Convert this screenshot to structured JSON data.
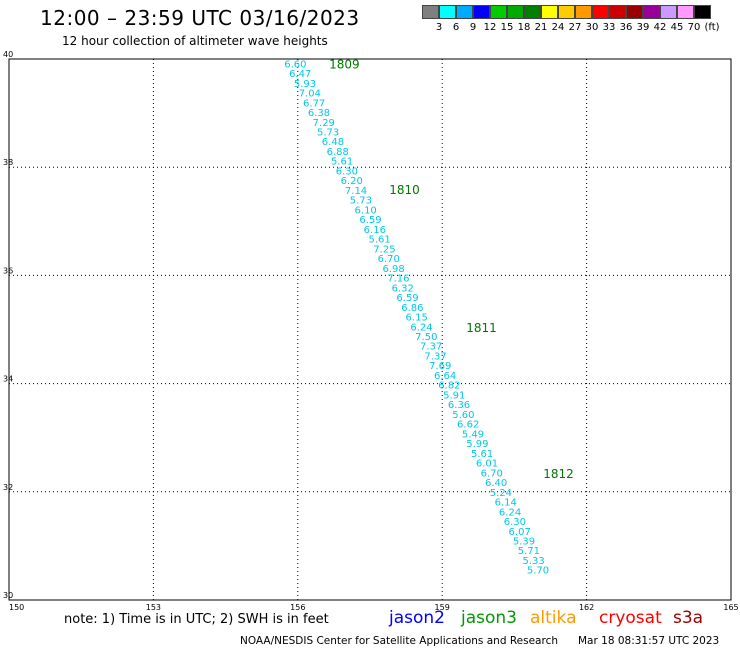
{
  "title": "12:00 – 23:59 UTC 03/16/2023",
  "subtitle": "12 hour collection of altimeter wave heights",
  "legend": {
    "colors": [
      "#7f7f7f",
      "#00ffff",
      "#00aaff",
      "#0000ff",
      "#00cc00",
      "#00aa00",
      "#008000",
      "#ffff00",
      "#ffcc00",
      "#ff9900",
      "#ff0000",
      "#cc0000",
      "#990000",
      "#990099",
      "#cc99ff",
      "#ff99ff",
      "#000000"
    ],
    "labels": [
      "3",
      "6",
      "9",
      "12",
      "15",
      "18",
      "21",
      "24",
      "27",
      "30",
      "33",
      "36",
      "39",
      "42",
      "45",
      "70"
    ],
    "unit": "(ft)"
  },
  "chart_data": {
    "type": "scatter",
    "xlim": [
      150,
      165
    ],
    "ylim": [
      30,
      40
    ],
    "x_ticks": [
      "150",
      "153",
      "156",
      "159",
      "162",
      "165"
    ],
    "y_ticks": [
      "40",
      "38",
      "36",
      "34",
      "32",
      "30"
    ],
    "grid": true,
    "series": [
      {
        "color": "#00c8e6",
        "points": [
          {
            "x": 155.95,
            "y": 39.92,
            "v": "6.60"
          },
          {
            "x": 156.05,
            "y": 39.74,
            "v": "6.47"
          },
          {
            "x": 156.15,
            "y": 39.56,
            "v": "5.93"
          },
          {
            "x": 156.25,
            "y": 39.38,
            "v": "7.04"
          },
          {
            "x": 156.34,
            "y": 39.2,
            "v": "6.77"
          },
          {
            "x": 156.44,
            "y": 39.02,
            "v": "6.38"
          },
          {
            "x": 156.54,
            "y": 38.84,
            "v": "7.29"
          },
          {
            "x": 156.63,
            "y": 38.66,
            "v": "5.73"
          },
          {
            "x": 156.73,
            "y": 38.48,
            "v": "6.48"
          },
          {
            "x": 156.83,
            "y": 38.3,
            "v": "6.88"
          },
          {
            "x": 156.92,
            "y": 38.12,
            "v": "5.61"
          },
          {
            "x": 157.02,
            "y": 37.94,
            "v": "6.30"
          },
          {
            "x": 157.12,
            "y": 37.76,
            "v": "6.20"
          },
          {
            "x": 157.21,
            "y": 37.58,
            "v": "7.14"
          },
          {
            "x": 157.31,
            "y": 37.4,
            "v": "5.73"
          },
          {
            "x": 157.41,
            "y": 37.22,
            "v": "6.10"
          },
          {
            "x": 157.51,
            "y": 37.04,
            "v": "6.59"
          },
          {
            "x": 157.6,
            "y": 36.86,
            "v": "6.16"
          },
          {
            "x": 157.7,
            "y": 36.68,
            "v": "5.61"
          },
          {
            "x": 157.8,
            "y": 36.5,
            "v": "7.25"
          },
          {
            "x": 157.89,
            "y": 36.32,
            "v": "6.70"
          },
          {
            "x": 157.99,
            "y": 36.14,
            "v": "6.98"
          },
          {
            "x": 158.09,
            "y": 35.96,
            "v": "7.16"
          },
          {
            "x": 158.18,
            "y": 35.78,
            "v": "6.32"
          },
          {
            "x": 158.28,
            "y": 35.6,
            "v": "6.59"
          },
          {
            "x": 158.38,
            "y": 35.42,
            "v": "6.86"
          },
          {
            "x": 158.47,
            "y": 35.24,
            "v": "6.15"
          },
          {
            "x": 158.57,
            "y": 35.06,
            "v": "6.24"
          },
          {
            "x": 158.67,
            "y": 34.88,
            "v": "7.50"
          },
          {
            "x": 158.77,
            "y": 34.7,
            "v": "7.37"
          },
          {
            "x": 158.86,
            "y": 34.52,
            "v": "7.37"
          },
          {
            "x": 158.96,
            "y": 34.34,
            "v": "7.69"
          },
          {
            "x": 159.06,
            "y": 34.16,
            "v": "6.64"
          },
          {
            "x": 159.15,
            "y": 33.98,
            "v": "6.82"
          },
          {
            "x": 159.25,
            "y": 33.8,
            "v": "5.91"
          },
          {
            "x": 159.35,
            "y": 33.62,
            "v": "6.36"
          },
          {
            "x": 159.44,
            "y": 33.44,
            "v": "5.60"
          },
          {
            "x": 159.54,
            "y": 33.26,
            "v": "6.62"
          },
          {
            "x": 159.64,
            "y": 33.08,
            "v": "5.49"
          },
          {
            "x": 159.73,
            "y": 32.9,
            "v": "5.99"
          },
          {
            "x": 159.83,
            "y": 32.72,
            "v": "5.61"
          },
          {
            "x": 159.93,
            "y": 32.54,
            "v": "6.01"
          },
          {
            "x": 160.03,
            "y": 32.36,
            "v": "6.70"
          },
          {
            "x": 160.12,
            "y": 32.18,
            "v": "6.40"
          },
          {
            "x": 160.22,
            "y": 32.0,
            "v": "5.24"
          },
          {
            "x": 160.32,
            "y": 31.82,
            "v": "6.14"
          },
          {
            "x": 160.41,
            "y": 31.64,
            "v": "6.24"
          },
          {
            "x": 160.51,
            "y": 31.46,
            "v": "6.30"
          },
          {
            "x": 160.61,
            "y": 31.28,
            "v": "6.07"
          },
          {
            "x": 160.7,
            "y": 31.1,
            "v": "5.39"
          },
          {
            "x": 160.8,
            "y": 30.92,
            "v": "5.71"
          },
          {
            "x": 160.9,
            "y": 30.74,
            "v": "5.33"
          },
          {
            "x": 160.99,
            "y": 30.56,
            "v": "5.70"
          }
        ]
      }
    ],
    "annotations": [
      {
        "x": 156.65,
        "y": 39.92,
        "text": "1809",
        "color": "#007700"
      },
      {
        "x": 157.9,
        "y": 37.6,
        "text": "1810",
        "color": "#007700"
      },
      {
        "x": 159.5,
        "y": 35.05,
        "text": "1811",
        "color": "#007700"
      },
      {
        "x": 161.1,
        "y": 32.35,
        "text": "1812",
        "color": "#007700"
      }
    ]
  },
  "footer": {
    "note": "note: 1) Time is in UTC; 2) SWH is in feet",
    "satellites": [
      {
        "name": "jason2",
        "color": "#0000ff"
      },
      {
        "name": "jason3",
        "color": "#009900"
      },
      {
        "name": "altika",
        "color": "#ff9900"
      },
      {
        "name": "cryosat",
        "color": "#ff0000"
      },
      {
        "name": "s3a",
        "color": "#990000"
      }
    ],
    "credit": "NOAA/NESDIS Center for Satellite Applications and Research",
    "timestamp": "Mar 18 08:31:57 UTC 2023"
  }
}
